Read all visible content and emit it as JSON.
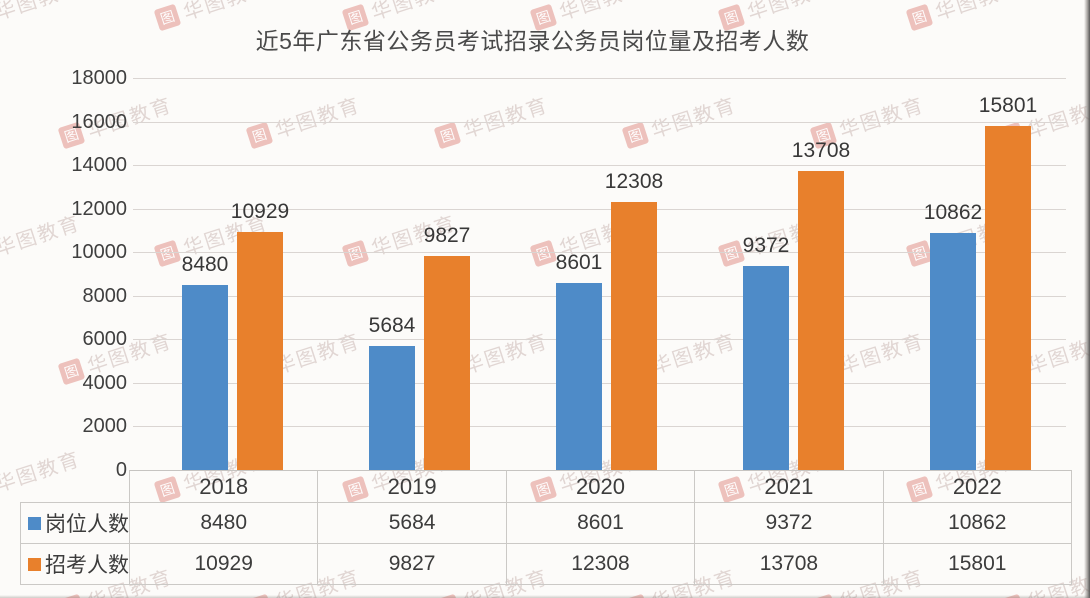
{
  "chart_data": {
    "type": "bar",
    "title": "近5年广东省公务员考试招录公务员岗位量及招考人数",
    "categories": [
      "2018",
      "2019",
      "2020",
      "2021",
      "2022"
    ],
    "series": [
      {
        "name": "岗位人数",
        "color": "#4E8BC8",
        "values": [
          8480,
          5684,
          8601,
          9372,
          10862
        ]
      },
      {
        "name": "招考人数",
        "color": "#E8802C",
        "values": [
          10929,
          9827,
          12308,
          13708,
          15801
        ]
      }
    ],
    "ylim": [
      0,
      18000
    ],
    "yticks": [
      "18000",
      "16000",
      "14000",
      "12000",
      "10000",
      "8000",
      "6000",
      "4000",
      "2000",
      "0"
    ],
    "grid": true,
    "value_labels": true,
    "legend_position": "table-left"
  },
  "watermark": {
    "logo_glyph": "图",
    "text": "华图教育",
    "brand_color": "#CB3A30"
  }
}
